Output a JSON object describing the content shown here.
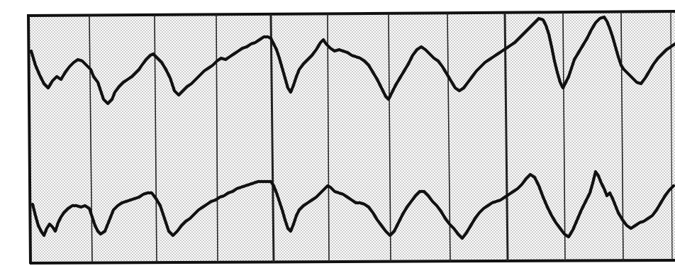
{
  "recording": {
    "trace_count": 2,
    "division_count": 11,
    "colors": {
      "paper": "#ffffff",
      "ink": "#111111",
      "dots": "#8a8a8a"
    }
  }
}
